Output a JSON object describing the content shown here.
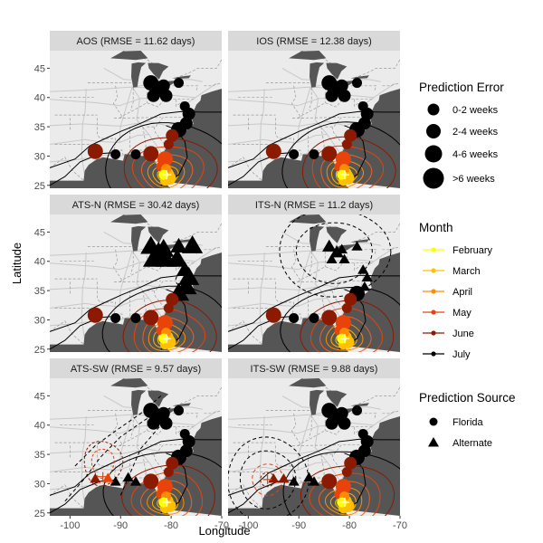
{
  "chart_data": {
    "type": "scatter",
    "xlabel": "Longitude",
    "ylabel": "Latitude",
    "xlim": [
      -104,
      -70
    ],
    "ylim": [
      24.5,
      48
    ],
    "xticks": [
      -100,
      -90,
      -80,
      -70
    ],
    "xtick_labels": [
      "-100",
      "-90",
      "-80",
      "-70"
    ],
    "yticks": [
      25,
      30,
      35,
      40,
      45
    ],
    "ytick_labels": [
      "25",
      "30",
      "35",
      "40",
      "45"
    ],
    "panels": [
      {
        "title": "AOS (RMSE = 11.62 days)"
      },
      {
        "title": "IOS (RMSE = 12.38 days)"
      },
      {
        "title": "ATS-N (RMSE = 30.42 days)"
      },
      {
        "title": "ITS-N (RMSE = 11.2 days)"
      },
      {
        "title": "ATS-SW (RMSE = 9.57 days)"
      },
      {
        "title": "ITS-SW (RMSE = 9.88 days)"
      }
    ],
    "legend_error": {
      "title": "Prediction Error",
      "items": [
        "0-2 weeks",
        "2-4 weeks",
        "4-6 weeks",
        ">6 weeks"
      ]
    },
    "legend_month": {
      "title": "Month",
      "items": [
        {
          "label": "February",
          "color": "#FFFF00"
        },
        {
          "label": "March",
          "color": "#FFC000"
        },
        {
          "label": "April",
          "color": "#FF8C00"
        },
        {
          "label": "May",
          "color": "#E8430A"
        },
        {
          "label": "June",
          "color": "#8B1A00"
        },
        {
          "label": "July",
          "color": "#000000"
        }
      ]
    },
    "legend_source": {
      "title": "Prediction Source",
      "items": [
        {
          "label": "Florida",
          "shape": "circle"
        },
        {
          "label": "Alternate",
          "shape": "triangle"
        }
      ]
    },
    "base_points": [
      {
        "lon": -84.0,
        "lat": 42.5,
        "err": 2,
        "month": "July"
      },
      {
        "lon": -82.5,
        "lat": 41.5,
        "err": 2,
        "month": "July"
      },
      {
        "lon": -83.5,
        "lat": 40.3,
        "err": 1,
        "month": "July"
      },
      {
        "lon": -81.5,
        "lat": 42.0,
        "err": 1,
        "month": "July"
      },
      {
        "lon": -81.0,
        "lat": 40.3,
        "err": 1,
        "month": "July"
      },
      {
        "lon": -78.5,
        "lat": 42.5,
        "err": 0,
        "month": "July"
      },
      {
        "lon": -77.3,
        "lat": 38.5,
        "err": 0,
        "month": "July"
      },
      {
        "lon": -76.5,
        "lat": 37.2,
        "err": 1,
        "month": "July"
      },
      {
        "lon": -77.0,
        "lat": 35.6,
        "err": 1,
        "month": "July"
      },
      {
        "lon": -78.5,
        "lat": 34.5,
        "err": 2,
        "month": "July"
      },
      {
        "lon": -79.8,
        "lat": 33.5,
        "err": 1,
        "month": "June"
      },
      {
        "lon": -80.5,
        "lat": 32.0,
        "err": 0,
        "month": "June"
      },
      {
        "lon": -84.0,
        "lat": 30.4,
        "err": 2,
        "month": "June"
      },
      {
        "lon": -87.0,
        "lat": 30.3,
        "err": 0,
        "month": "July"
      },
      {
        "lon": -91.0,
        "lat": 30.3,
        "err": 0,
        "month": "July"
      },
      {
        "lon": -95.0,
        "lat": 30.8,
        "err": 2,
        "month": "June"
      },
      {
        "lon": -81.2,
        "lat": 29.5,
        "err": 2,
        "month": "May"
      },
      {
        "lon": -82.0,
        "lat": 28.2,
        "err": 0,
        "month": "May"
      },
      {
        "lon": -81.0,
        "lat": 27.8,
        "err": 0,
        "month": "April"
      },
      {
        "lon": -80.8,
        "lat": 27.0,
        "err": 1,
        "month": "March"
      },
      {
        "lon": -80.3,
        "lat": 26.2,
        "err": 1,
        "month": "March"
      },
      {
        "lon": -81.2,
        "lat": 25.8,
        "err": 0,
        "month": "March"
      },
      {
        "lon": -81.5,
        "lat": 26.8,
        "err": 0,
        "month": "February"
      }
    ]
  }
}
